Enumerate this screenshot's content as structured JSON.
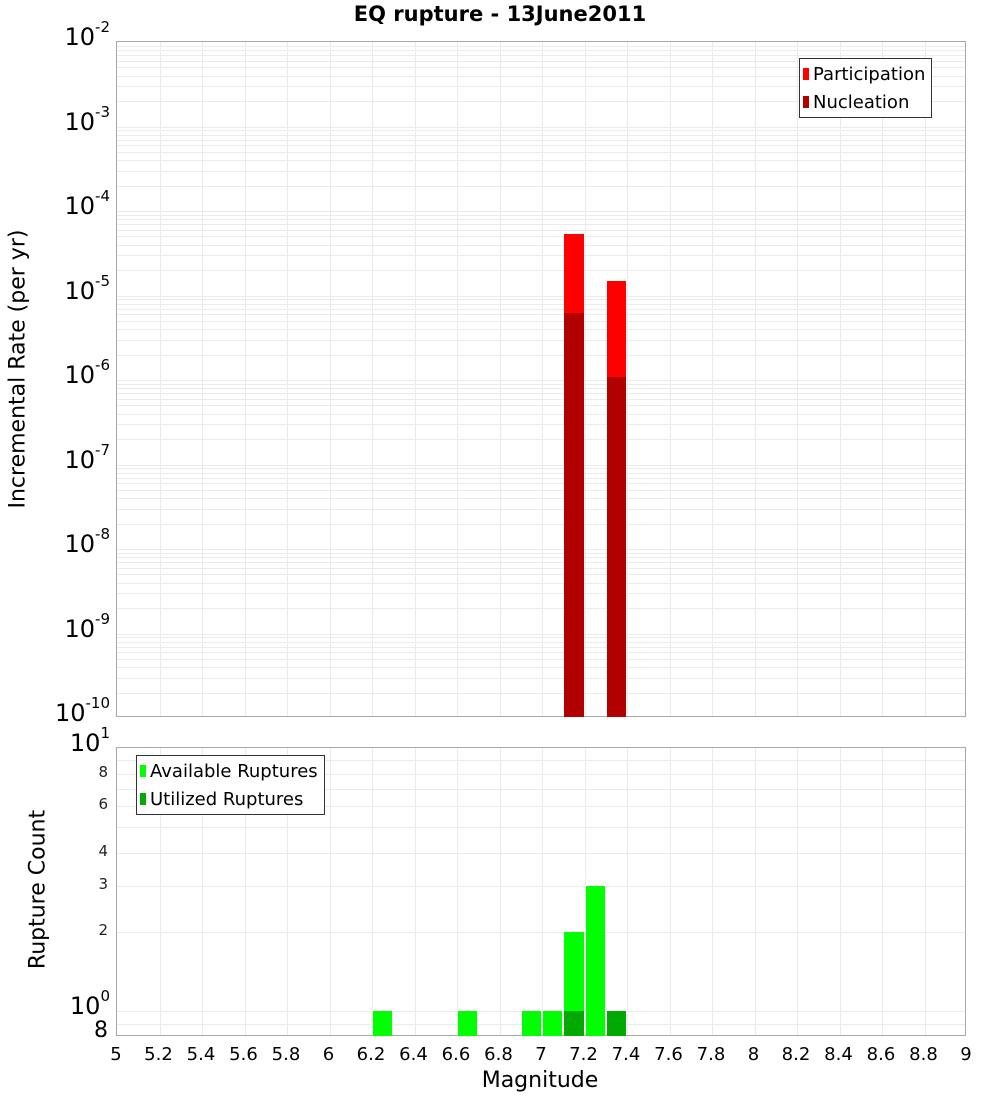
{
  "title": "EQ rupture - 13June2011",
  "colors": {
    "participation": "#ff0000",
    "nucleation": "#b20000",
    "available": "#00ff00",
    "utilized": "#00aa00",
    "grid": "#ebebeb",
    "frame": "#a8a8a8"
  },
  "top_plot": {
    "ylabel": "Incremental Rate (per yr)",
    "y_major_ticks": [
      {
        "base": "10",
        "exp": "-2"
      },
      {
        "base": "10",
        "exp": "-3"
      },
      {
        "base": "10",
        "exp": "-4"
      },
      {
        "base": "10",
        "exp": "-5"
      },
      {
        "base": "10",
        "exp": "-6"
      },
      {
        "base": "10",
        "exp": "-7"
      },
      {
        "base": "10",
        "exp": "-8"
      },
      {
        "base": "10",
        "exp": "-9"
      },
      {
        "base": "10",
        "exp": "-10"
      }
    ],
    "legend": [
      {
        "label": "Participation",
        "color": "#ff0000"
      },
      {
        "label": "Nucleation",
        "color": "#b20000"
      }
    ]
  },
  "bottom_plot": {
    "ylabel": "Rupture Count",
    "y_major_ticks": [
      {
        "base": "10",
        "exp": "1"
      },
      {
        "base": "10",
        "exp": "0"
      }
    ],
    "y_minor_ticks": [
      "8",
      "6",
      "4",
      "3",
      "2"
    ],
    "y_bottom_tick": "8",
    "legend": [
      {
        "label": "Available Ruptures",
        "color": "#00ff00"
      },
      {
        "label": "Utilized Ruptures",
        "color": "#00aa00"
      }
    ]
  },
  "xlabel": "Magnitude",
  "x_ticks": [
    "5",
    "5.2",
    "5.4",
    "5.6",
    "5.8",
    "6",
    "6.2",
    "6.4",
    "6.6",
    "6.8",
    "7",
    "7.2",
    "7.4",
    "7.6",
    "7.8",
    "8",
    "8.2",
    "8.4",
    "8.6",
    "8.8",
    "9"
  ],
  "chart_data": [
    {
      "type": "bar",
      "title": "EQ rupture - 13June2011",
      "xlabel": "Magnitude",
      "ylabel": "Incremental Rate (per yr)",
      "yscale": "log",
      "xlim": [
        5,
        9
      ],
      "ylim": [
        1e-10,
        0.01
      ],
      "bin_width": 0.1,
      "grid": true,
      "legend_position": "top-right",
      "series": [
        {
          "name": "Participation",
          "color": "#ff0000",
          "x": [
            7.15,
            7.35
          ],
          "values": [
            5.3e-05,
            1.5e-05
          ]
        },
        {
          "name": "Nucleation",
          "color": "#b20000",
          "x": [
            7.15,
            7.35
          ],
          "values": [
            6.2e-06,
            1.1e-06
          ]
        }
      ]
    },
    {
      "type": "bar",
      "xlabel": "Magnitude",
      "ylabel": "Rupture Count",
      "yscale": "log",
      "xlim": [
        5,
        9
      ],
      "ylim": [
        0.8,
        10
      ],
      "bin_width": 0.1,
      "grid": true,
      "legend_position": "top-left",
      "series": [
        {
          "name": "Available Ruptures",
          "color": "#00ff00",
          "x": [
            6.25,
            6.65,
            6.95,
            7.05,
            7.15,
            7.25,
            7.35
          ],
          "values": [
            1,
            1,
            1,
            1,
            2,
            3,
            1
          ]
        },
        {
          "name": "Utilized Ruptures",
          "color": "#00aa00",
          "x": [
            7.15,
            7.35
          ],
          "values": [
            1,
            1
          ]
        }
      ]
    }
  ]
}
